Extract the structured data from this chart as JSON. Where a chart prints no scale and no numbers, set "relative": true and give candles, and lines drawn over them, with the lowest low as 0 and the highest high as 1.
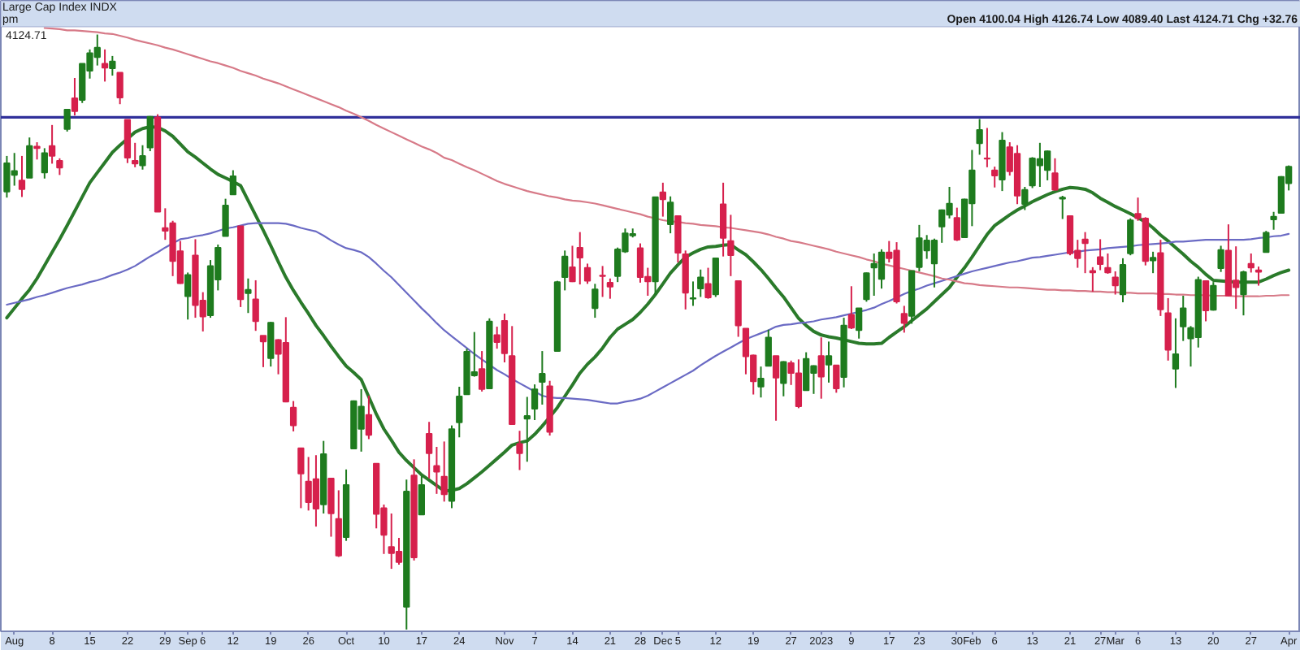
{
  "chart_data": {
    "type": "candlestick",
    "title": "Large Cap Index INDX",
    "annotations": [
      "Open 4100.04 High 4126.74 Low 4089.40 Last 4124.71 Chg +32.76",
      "pm",
      "4124.71"
    ],
    "relative": true,
    "categories": [
      null,
      "Aug",
      null,
      null,
      null,
      null,
      "8",
      null,
      null,
      null,
      null,
      "15",
      null,
      null,
      null,
      null,
      "22",
      null,
      null,
      null,
      null,
      "29",
      null,
      null,
      "Sep",
      null,
      "6",
      null,
      null,
      null,
      "12",
      null,
      null,
      null,
      null,
      "19",
      null,
      null,
      null,
      null,
      "26",
      null,
      null,
      null,
      null,
      "Oct",
      null,
      null,
      null,
      null,
      "10",
      null,
      null,
      null,
      null,
      "17",
      null,
      null,
      null,
      null,
      "24",
      null,
      null,
      null,
      null,
      null,
      "Nov",
      null,
      null,
      null,
      "7",
      null,
      null,
      null,
      null,
      "14",
      null,
      null,
      null,
      null,
      "21",
      null,
      null,
      null,
      "28",
      null,
      null,
      "Dec",
      null,
      "5",
      null,
      null,
      null,
      null,
      "12",
      null,
      null,
      null,
      null,
      "19",
      null,
      null,
      null,
      null,
      "27",
      null,
      null,
      null,
      "2023",
      null,
      null,
      null,
      "9",
      null,
      null,
      null,
      null,
      "17",
      null,
      null,
      null,
      "23",
      null,
      null,
      null,
      null,
      "30",
      null,
      "Feb",
      null,
      null,
      "6",
      null,
      null,
      null,
      null,
      "13",
      null,
      null,
      null,
      null,
      "21",
      null,
      null,
      null,
      "27",
      null,
      "Mar",
      null,
      null,
      "6",
      null,
      null,
      null,
      null,
      "13",
      null,
      null,
      null,
      null,
      "20",
      null,
      null,
      null,
      null,
      "27",
      null,
      null,
      null,
      null,
      "Apr"
    ],
    "ohlc": [
      [
        0.736,
        0.796,
        0.726,
        0.784
      ],
      [
        0.764,
        0.801,
        0.746,
        0.771
      ],
      [
        0.755,
        0.796,
        0.727,
        0.74
      ],
      [
        0.759,
        0.827,
        0.759,
        0.813
      ],
      [
        0.812,
        0.819,
        0.79,
        0.809
      ],
      [
        0.768,
        0.809,
        0.758,
        0.801
      ],
      [
        0.813,
        0.848,
        0.783,
        0.796
      ],
      [
        0.788,
        0.792,
        0.764,
        0.776
      ],
      [
        0.841,
        0.875,
        0.837,
        0.874
      ],
      [
        0.893,
        0.927,
        0.864,
        0.871
      ],
      [
        0.89,
        0.951,
        0.885,
        0.951
      ],
      [
        0.939,
        0.975,
        0.926,
        0.969
      ],
      [
        0.962,
        1.0,
        0.948,
        0.978
      ],
      [
        0.951,
        0.975,
        0.921,
        0.944
      ],
      [
        0.943,
        0.964,
        0.931,
        0.955
      ],
      [
        0.936,
        0.936,
        0.883,
        0.894
      ],
      [
        0.857,
        0.857,
        0.784,
        0.793
      ],
      [
        0.788,
        0.818,
        0.777,
        0.783
      ],
      [
        0.78,
        0.814,
        0.773,
        0.796
      ],
      [
        0.81,
        0.863,
        0.804,
        0.862
      ],
      [
        0.861,
        0.866,
        0.702,
        0.702
      ],
      [
        0.675,
        0.708,
        0.655,
        0.67
      ],
      [
        0.683,
        0.687,
        0.594,
        0.619
      ],
      [
        0.636,
        0.653,
        0.581,
        0.582
      ],
      [
        0.56,
        0.6,
        0.521,
        0.596
      ],
      [
        0.629,
        0.656,
        0.524,
        0.545
      ],
      [
        0.553,
        0.567,
        0.501,
        0.526
      ],
      [
        0.528,
        0.621,
        0.524,
        0.611
      ],
      [
        0.588,
        0.647,
        0.57,
        0.642
      ],
      [
        0.661,
        0.724,
        0.661,
        0.713
      ],
      [
        0.731,
        0.772,
        0.731,
        0.762
      ],
      [
        0.678,
        0.678,
        0.542,
        0.555
      ],
      [
        0.565,
        0.59,
        0.532,
        0.571
      ],
      [
        0.555,
        0.587,
        0.502,
        0.518
      ],
      [
        0.494,
        0.494,
        0.441,
        0.484
      ],
      [
        0.456,
        0.517,
        0.442,
        0.516
      ],
      [
        0.487,
        0.488,
        0.429,
        0.463
      ],
      [
        0.482,
        0.525,
        0.382,
        0.383
      ],
      [
        0.373,
        0.384,
        0.333,
        0.343
      ],
      [
        0.305,
        0.305,
        0.204,
        0.262
      ],
      [
        0.249,
        0.29,
        0.2,
        0.214
      ],
      [
        0.253,
        0.293,
        0.173,
        0.203
      ],
      [
        0.21,
        0.317,
        0.195,
        0.295
      ],
      [
        0.254,
        0.254,
        0.156,
        0.195
      ],
      [
        0.186,
        0.234,
        0.122,
        0.124
      ],
      [
        0.155,
        0.269,
        0.149,
        0.243
      ],
      [
        0.304,
        0.385,
        0.304,
        0.384
      ],
      [
        0.337,
        0.404,
        0.299,
        0.375
      ],
      [
        0.361,
        0.393,
        0.32,
        0.327
      ],
      [
        0.279,
        0.279,
        0.17,
        0.194
      ],
      [
        0.204,
        0.21,
        0.127,
        0.159
      ],
      [
        0.139,
        0.195,
        0.102,
        0.128
      ],
      [
        0.131,
        0.154,
        0.109,
        0.113
      ],
      [
        0.038,
        0.252,
        0.0,
        0.232
      ],
      [
        0.259,
        0.286,
        0.116,
        0.121
      ],
      [
        0.193,
        0.258,
        0.193,
        0.243
      ],
      [
        0.329,
        0.349,
        0.254,
        0.296
      ],
      [
        0.275,
        0.307,
        0.228,
        0.265
      ],
      [
        0.257,
        0.316,
        0.215,
        0.227
      ],
      [
        0.216,
        0.343,
        0.204,
        0.337
      ],
      [
        0.348,
        0.408,
        0.323,
        0.392
      ],
      [
        0.395,
        0.472,
        0.395,
        0.467
      ],
      [
        0.427,
        0.5,
        0.425,
        0.433
      ],
      [
        0.438,
        0.468,
        0.4,
        0.404
      ],
      [
        0.405,
        0.523,
        0.405,
        0.518
      ],
      [
        0.495,
        0.509,
        0.472,
        0.483
      ],
      [
        0.519,
        0.531,
        0.449,
        0.464
      ],
      [
        0.46,
        0.51,
        0.344,
        0.345
      ],
      [
        0.312,
        0.334,
        0.268,
        0.296
      ],
      [
        0.354,
        0.391,
        0.282,
        0.359
      ],
      [
        0.371,
        0.412,
        0.352,
        0.404
      ],
      [
        0.416,
        0.468,
        0.378,
        0.43
      ],
      [
        0.409,
        0.418,
        0.326,
        0.332
      ],
      [
        0.468,
        0.586,
        0.468,
        0.584
      ],
      [
        0.592,
        0.637,
        0.57,
        0.627
      ],
      [
        0.609,
        0.645,
        0.584,
        0.585
      ],
      [
        0.642,
        0.668,
        0.58,
        0.625
      ],
      [
        0.608,
        0.615,
        0.581,
        0.586
      ],
      [
        0.54,
        0.581,
        0.524,
        0.572
      ],
      [
        0.595,
        0.611,
        0.559,
        0.594
      ],
      [
        0.583,
        0.59,
        0.556,
        0.576
      ],
      [
        0.594,
        0.642,
        0.584,
        0.639
      ],
      [
        0.635,
        0.674,
        0.633,
        0.666
      ],
      [
        0.662,
        0.674,
        0.659,
        0.665
      ],
      [
        0.641,
        0.649,
        0.583,
        0.592
      ],
      [
        0.593,
        0.608,
        0.561,
        0.585
      ],
      [
        0.585,
        0.727,
        0.563,
        0.727
      ],
      [
        0.735,
        0.751,
        0.694,
        0.723
      ],
      [
        0.681,
        0.728,
        0.666,
        0.718
      ],
      [
        0.695,
        0.696,
        0.617,
        0.633
      ],
      [
        0.631,
        0.637,
        0.538,
        0.566
      ],
      [
        0.556,
        0.585,
        0.544,
        0.557
      ],
      [
        0.573,
        0.605,
        0.559,
        0.592
      ],
      [
        0.581,
        0.608,
        0.556,
        0.558
      ],
      [
        0.563,
        0.624,
        0.559,
        0.624
      ],
      [
        0.715,
        0.751,
        0.627,
        0.658
      ],
      [
        0.653,
        0.697,
        0.594,
        0.629
      ],
      [
        0.586,
        0.586,
        0.492,
        0.511
      ],
      [
        0.506,
        0.506,
        0.429,
        0.459
      ],
      [
        0.461,
        0.462,
        0.395,
        0.417
      ],
      [
        0.408,
        0.442,
        0.39,
        0.422
      ],
      [
        0.443,
        0.504,
        0.443,
        0.491
      ],
      [
        0.46,
        0.46,
        0.351,
        0.423
      ],
      [
        0.414,
        0.451,
        0.392,
        0.45
      ],
      [
        0.448,
        0.452,
        0.411,
        0.431
      ],
      [
        0.431,
        0.454,
        0.372,
        0.375
      ],
      [
        0.402,
        0.466,
        0.402,
        0.455
      ],
      [
        0.431,
        0.444,
        0.396,
        0.443
      ],
      [
        0.46,
        0.491,
        0.388,
        0.425
      ],
      [
        0.445,
        0.484,
        0.415,
        0.46
      ],
      [
        0.444,
        0.444,
        0.398,
        0.405
      ],
      [
        0.424,
        0.524,
        0.407,
        0.511
      ],
      [
        0.529,
        0.577,
        0.505,
        0.507
      ],
      [
        0.503,
        0.54,
        0.489,
        0.54
      ],
      [
        0.555,
        0.6,
        0.551,
        0.599
      ],
      [
        0.608,
        0.632,
        0.561,
        0.615
      ],
      [
        0.589,
        0.639,
        0.573,
        0.634
      ],
      [
        0.634,
        0.653,
        0.617,
        0.624
      ],
      [
        0.637,
        0.651,
        0.548,
        0.551
      ],
      [
        0.531,
        0.544,
        0.499,
        0.515
      ],
      [
        0.527,
        0.603,
        0.514,
        0.603
      ],
      [
        0.609,
        0.68,
        0.602,
        0.658
      ],
      [
        0.637,
        0.663,
        0.623,
        0.654
      ],
      [
        0.615,
        0.657,
        0.575,
        0.654
      ],
      [
        0.677,
        0.706,
        0.65,
        0.705
      ],
      [
        0.697,
        0.744,
        0.691,
        0.716
      ],
      [
        0.692,
        0.709,
        0.653,
        0.655
      ],
      [
        0.659,
        0.724,
        0.658,
        0.723
      ],
      [
        0.716,
        0.806,
        0.678,
        0.772
      ],
      [
        0.817,
        0.858,
        0.798,
        0.84
      ],
      [
        0.792,
        0.843,
        0.777,
        0.791
      ],
      [
        0.772,
        0.778,
        0.743,
        0.763
      ],
      [
        0.756,
        0.836,
        0.737,
        0.822
      ],
      [
        0.811,
        0.819,
        0.763,
        0.77
      ],
      [
        0.8,
        0.814,
        0.715,
        0.729
      ],
      [
        0.715,
        0.744,
        0.705,
        0.739
      ],
      [
        0.746,
        0.794,
        0.742,
        0.792
      ],
      [
        0.78,
        0.818,
        0.744,
        0.791
      ],
      [
        0.772,
        0.805,
        0.755,
        0.804
      ],
      [
        0.767,
        0.792,
        0.738,
        0.739
      ],
      [
        0.724,
        0.729,
        0.69,
        0.726
      ],
      [
        0.695,
        0.695,
        0.629,
        0.632
      ],
      [
        0.637,
        0.655,
        0.608,
        0.624
      ],
      [
        0.656,
        0.668,
        0.599,
        0.649
      ],
      [
        0.603,
        0.609,
        0.568,
        0.6
      ],
      [
        0.626,
        0.656,
        0.604,
        0.614
      ],
      [
        0.608,
        0.632,
        0.598,
        0.6
      ],
      [
        0.592,
        0.602,
        0.563,
        0.578
      ],
      [
        0.563,
        0.624,
        0.55,
        0.613
      ],
      [
        0.632,
        0.691,
        0.629,
        0.688
      ],
      [
        0.699,
        0.726,
        0.687,
        0.691
      ],
      [
        0.691,
        0.693,
        0.612,
        0.619
      ],
      [
        0.62,
        0.635,
        0.599,
        0.625
      ],
      [
        0.633,
        0.655,
        0.527,
        0.538
      ],
      [
        0.532,
        0.557,
        0.452,
        0.47
      ],
      [
        0.438,
        0.523,
        0.406,
        0.463
      ],
      [
        0.509,
        0.561,
        0.485,
        0.54
      ],
      [
        0.489,
        0.51,
        0.442,
        0.507
      ],
      [
        0.491,
        0.593,
        0.474,
        0.588
      ],
      [
        0.586,
        0.587,
        0.518,
        0.536
      ],
      [
        0.537,
        0.584,
        0.536,
        0.578
      ],
      [
        0.607,
        0.645,
        0.601,
        0.638
      ],
      [
        0.637,
        0.681,
        0.56,
        0.561
      ],
      [
        0.587,
        0.644,
        0.539,
        0.575
      ],
      [
        0.563,
        0.603,
        0.528,
        0.601
      ],
      [
        0.615,
        0.632,
        0.6,
        0.608
      ],
      [
        0.604,
        0.61,
        0.578,
        0.601
      ],
      [
        0.634,
        0.67,
        0.634,
        0.667
      ],
      [
        0.689,
        0.702,
        0.672,
        0.694
      ],
      [
        0.7,
        0.762,
        0.7,
        0.761
      ],
      [
        0.75,
        0.78,
        0.738,
        0.778
      ]
    ],
    "colors": [
      "#1e7b1e",
      "#1e7b1e",
      "#d6204c",
      "#1e7b1e",
      "#d6204c",
      "#1e7b1e",
      "#d6204c",
      "#d6204c",
      "#1e7b1e",
      "#d6204c",
      "#1e7b1e",
      "#1e7b1e",
      "#1e7b1e",
      "#d6204c",
      "#1e7b1e",
      "#d6204c",
      "#d6204c",
      "#d6204c",
      "#1e7b1e",
      "#1e7b1e",
      "#d6204c",
      "#d6204c",
      "#d6204c",
      "#d6204c",
      "#1e7b1e",
      "#d6204c",
      "#d6204c",
      "#1e7b1e",
      "#1e7b1e",
      "#1e7b1e",
      "#1e7b1e",
      "#d6204c",
      "#1e7b1e",
      "#d6204c",
      "#d6204c",
      "#1e7b1e",
      "#d6204c",
      "#d6204c",
      "#d6204c",
      "#d6204c",
      "#d6204c",
      "#d6204c",
      "#1e7b1e",
      "#d6204c",
      "#d6204c",
      "#1e7b1e",
      "#1e7b1e",
      "#1e7b1e",
      "#d6204c",
      "#d6204c",
      "#d6204c",
      "#d6204c",
      "#d6204c",
      "#1e7b1e",
      "#d6204c",
      "#1e7b1e",
      "#d6204c",
      "#d6204c",
      "#d6204c",
      "#1e7b1e",
      "#1e7b1e",
      "#1e7b1e",
      "#1e7b1e",
      "#d6204c",
      "#1e7b1e",
      "#d6204c",
      "#d6204c",
      "#d6204c",
      "#d6204c",
      "#1e7b1e",
      "#1e7b1e",
      "#1e7b1e",
      "#d6204c",
      "#1e7b1e",
      "#1e7b1e",
      "#d6204c",
      "#d6204c",
      "#d6204c",
      "#1e7b1e",
      "#d6204c",
      "#d6204c",
      "#1e7b1e",
      "#1e7b1e",
      "#1e7b1e",
      "#d6204c",
      "#d6204c",
      "#1e7b1e",
      "#d6204c",
      "#1e7b1e",
      "#d6204c",
      "#d6204c",
      "#1e7b1e",
      "#1e7b1e",
      "#d6204c",
      "#1e7b1e",
      "#d6204c",
      "#d6204c",
      "#d6204c",
      "#d6204c",
      "#d6204c",
      "#1e7b1e",
      "#1e7b1e",
      "#d6204c",
      "#1e7b1e",
      "#d6204c",
      "#d6204c",
      "#1e7b1e",
      "#1e7b1e",
      "#d6204c",
      "#1e7b1e",
      "#d6204c",
      "#1e7b1e",
      "#d6204c",
      "#1e7b1e",
      "#1e7b1e",
      "#1e7b1e",
      "#1e7b1e",
      "#d6204c",
      "#d6204c",
      "#d6204c",
      "#1e7b1e",
      "#1e7b1e",
      "#1e7b1e",
      "#1e7b1e",
      "#1e7b1e",
      "#1e7b1e",
      "#d6204c",
      "#1e7b1e",
      "#1e7b1e",
      "#1e7b1e",
      "#d6204c",
      "#d6204c",
      "#1e7b1e",
      "#d6204c",
      "#d6204c",
      "#1e7b1e",
      "#1e7b1e",
      "#1e7b1e",
      "#1e7b1e",
      "#d6204c",
      "#1e7b1e",
      "#d6204c",
      "#d6204c",
      "#d6204c",
      "#d6204c",
      "#d6204c",
      "#d6204c",
      "#d6204c",
      "#1e7b1e",
      "#1e7b1e",
      "#d6204c",
      "#d6204c",
      "#1e7b1e",
      "#d6204c",
      "#d6204c",
      "#1e7b1e",
      "#1e7b1e",
      "#1e7b1e",
      "#1e7b1e",
      "#d6204c",
      "#1e7b1e",
      "#1e7b1e",
      "#d6204c",
      "#d6204c",
      "#1e7b1e",
      "#d6204c",
      "#d6204c",
      "#1e7b1e",
      "#1e7b1e",
      "#1e7b1e",
      "#1e7b1e"
    ],
    "series": [
      {
        "type": "line",
        "color": "#2a7a2a",
        "values": [
          0.524,
          0.54,
          0.556,
          0.571,
          0.59,
          0.612,
          0.634,
          0.656,
          0.679,
          0.703,
          0.727,
          0.751,
          0.768,
          0.785,
          0.802,
          0.814,
          0.825,
          0.836,
          0.842,
          0.845,
          0.844,
          0.838,
          0.829,
          0.816,
          0.803,
          0.794,
          0.784,
          0.774,
          0.765,
          0.759,
          0.753,
          0.746,
          0.721,
          0.696,
          0.671,
          0.645,
          0.618,
          0.592,
          0.57,
          0.55,
          0.531,
          0.511,
          0.494,
          0.476,
          0.459,
          0.443,
          0.432,
          0.42,
          0.391,
          0.362,
          0.337,
          0.318,
          0.298,
          0.284,
          0.272,
          0.26,
          0.251,
          0.242,
          0.233,
          0.234,
          0.237,
          0.245,
          0.255,
          0.265,
          0.276,
          0.287,
          0.298,
          0.31,
          0.314,
          0.317,
          0.328,
          0.342,
          0.357,
          0.373,
          0.392,
          0.411,
          0.431,
          0.446,
          0.458,
          0.473,
          0.491,
          0.505,
          0.513,
          0.521,
          0.533,
          0.547,
          0.563,
          0.581,
          0.599,
          0.613,
          0.626,
          0.633,
          0.639,
          0.643,
          0.644,
          0.646,
          0.647,
          0.638,
          0.63,
          0.618,
          0.605,
          0.59,
          0.574,
          0.559,
          0.541,
          0.523,
          0.511,
          0.501,
          0.495,
          0.492,
          0.49,
          0.487,
          0.484,
          0.481,
          0.48,
          0.48,
          0.481,
          0.491,
          0.5,
          0.509,
          0.519,
          0.529,
          0.539,
          0.551,
          0.563,
          0.575,
          0.592,
          0.608,
          0.626,
          0.645,
          0.664,
          0.679,
          0.688,
          0.697,
          0.705,
          0.712,
          0.719,
          0.725,
          0.731,
          0.736,
          0.74,
          0.743,
          0.742,
          0.74,
          0.734,
          0.725,
          0.718,
          0.711,
          0.705,
          0.699,
          0.692,
          0.685,
          0.675,
          0.663,
          0.653,
          0.642,
          0.631,
          0.619,
          0.609,
          0.597,
          0.587,
          0.586,
          0.585,
          0.584,
          0.584,
          0.584,
          0.584,
          0.589,
          0.595,
          0.6,
          0.604
        ]
      },
      {
        "type": "line",
        "color": "#6a6ac4",
        "values": [
          0.546,
          0.549,
          0.552,
          0.555,
          0.559,
          0.562,
          0.566,
          0.57,
          0.574,
          0.577,
          0.58,
          0.584,
          0.587,
          0.591,
          0.596,
          0.6,
          0.605,
          0.611,
          0.619,
          0.627,
          0.634,
          0.642,
          0.649,
          0.656,
          0.658,
          0.661,
          0.663,
          0.666,
          0.67,
          0.674,
          0.676,
          0.679,
          0.682,
          0.683,
          0.683,
          0.683,
          0.683,
          0.682,
          0.679,
          0.675,
          0.672,
          0.669,
          0.662,
          0.654,
          0.647,
          0.641,
          0.638,
          0.634,
          0.626,
          0.615,
          0.603,
          0.592,
          0.579,
          0.566,
          0.553,
          0.54,
          0.528,
          0.515,
          0.503,
          0.493,
          0.483,
          0.473,
          0.463,
          0.454,
          0.445,
          0.436,
          0.429,
          0.421,
          0.414,
          0.407,
          0.4,
          0.393,
          0.39,
          0.389,
          0.389,
          0.388,
          0.387,
          0.386,
          0.384,
          0.382,
          0.38,
          0.38,
          0.383,
          0.385,
          0.388,
          0.393,
          0.4,
          0.407,
          0.414,
          0.421,
          0.428,
          0.435,
          0.444,
          0.452,
          0.46,
          0.467,
          0.474,
          0.481,
          0.488,
          0.493,
          0.498,
          0.503,
          0.509,
          0.512,
          0.513,
          0.515,
          0.516,
          0.518,
          0.521,
          0.523,
          0.525,
          0.528,
          0.531,
          0.534,
          0.537,
          0.541,
          0.547,
          0.552,
          0.558,
          0.564,
          0.569,
          0.573,
          0.578,
          0.582,
          0.586,
          0.59,
          0.594,
          0.598,
          0.602,
          0.605,
          0.608,
          0.611,
          0.614,
          0.617,
          0.619,
          0.622,
          0.625,
          0.626,
          0.628,
          0.63,
          0.632,
          0.634,
          0.635,
          0.637,
          0.638,
          0.639,
          0.641,
          0.642,
          0.643,
          0.644,
          0.646,
          0.647,
          0.648,
          0.649,
          0.65,
          0.652,
          0.652,
          0.653,
          0.654,
          0.655,
          0.655,
          0.655,
          0.655,
          0.655,
          0.655,
          0.656,
          0.658,
          0.659,
          0.661,
          0.662,
          0.665
        ]
      },
      {
        "type": "line",
        "color": "#d77a88",
        "values": [
          null,
          null,
          null,
          null,
          null,
          1.011,
          1.01,
          1.009,
          1.007,
          1.007,
          1.006,
          1.005,
          1.004,
          1.002,
          1.001,
          0.998,
          0.995,
          0.991,
          0.988,
          0.985,
          0.982,
          0.978,
          0.975,
          0.971,
          0.967,
          0.963,
          0.959,
          0.955,
          0.952,
          0.948,
          0.944,
          0.939,
          0.935,
          0.931,
          0.926,
          0.922,
          0.918,
          0.913,
          0.908,
          0.903,
          0.898,
          0.893,
          0.888,
          0.883,
          0.878,
          0.872,
          0.867,
          0.861,
          0.855,
          0.848,
          0.842,
          0.836,
          0.83,
          0.824,
          0.818,
          0.812,
          0.807,
          0.801,
          0.793,
          0.789,
          0.783,
          0.777,
          0.772,
          0.766,
          0.76,
          0.754,
          0.749,
          0.745,
          0.741,
          0.737,
          0.734,
          0.731,
          0.728,
          0.726,
          0.723,
          0.721,
          0.72,
          0.718,
          0.716,
          0.713,
          0.71,
          0.707,
          0.704,
          0.701,
          0.698,
          0.694,
          0.691,
          0.688,
          0.686,
          0.685,
          0.683,
          0.682,
          0.68,
          0.679,
          0.678,
          0.676,
          0.675,
          0.673,
          0.671,
          0.669,
          0.667,
          0.664,
          0.66,
          0.657,
          0.653,
          0.651,
          0.648,
          0.645,
          0.642,
          0.639,
          0.635,
          0.632,
          0.629,
          0.626,
          0.622,
          0.619,
          0.615,
          0.612,
          0.609,
          0.606,
          0.603,
          0.6,
          0.597,
          0.594,
          0.59,
          0.588,
          0.585,
          0.582,
          0.581,
          0.579,
          0.578,
          0.577,
          0.576,
          0.575,
          0.575,
          0.574,
          0.573,
          0.572,
          0.571,
          0.571,
          0.57,
          0.57,
          0.569,
          0.569,
          0.568,
          0.568,
          0.567,
          0.567,
          0.566,
          0.566,
          0.565,
          0.565,
          0.565,
          0.564,
          0.564,
          0.563,
          0.563,
          0.562,
          0.562,
          0.562,
          0.561,
          0.561,
          0.561,
          0.56,
          0.56,
          0.56,
          0.56,
          0.561,
          0.561,
          0.562,
          0.562
        ]
      }
    ],
    "ref_lines": [
      {
        "axis": "y",
        "value": 0.861,
        "color": "#30309a"
      }
    ]
  }
}
